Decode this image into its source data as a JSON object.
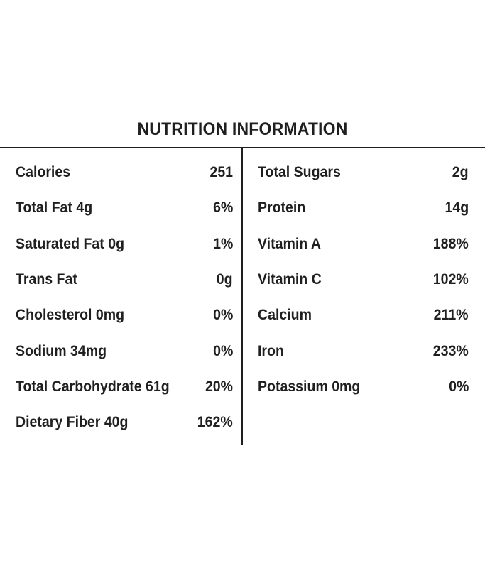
{
  "title": "NUTRITION INFORMATION",
  "left": [
    {
      "name": "Calories",
      "value": "251"
    },
    {
      "name": "Total Fat 4g",
      "value": "6%"
    },
    {
      "name": "Saturated Fat 0g",
      "value": "1%"
    },
    {
      "name": "Trans Fat",
      "value": "0g"
    },
    {
      "name": "Cholesterol 0mg",
      "value": "0%"
    },
    {
      "name": "Sodium 34mg",
      "value": "0%"
    },
    {
      "name": "Total Carbohydrate 61g",
      "value": "20%"
    },
    {
      "name": "Dietary Fiber 40g",
      "value": "162%"
    }
  ],
  "right": [
    {
      "name": "Total Sugars",
      "value": "2g"
    },
    {
      "name": "Protein",
      "value": "14g"
    },
    {
      "name": "Vitamin A",
      "value": "188%"
    },
    {
      "name": "Vitamin C",
      "value": "102%"
    },
    {
      "name": "Calcium",
      "value": "211%"
    },
    {
      "name": "Iron",
      "value": "233%"
    },
    {
      "name": "Potassium 0mg",
      "value": "0%"
    }
  ]
}
